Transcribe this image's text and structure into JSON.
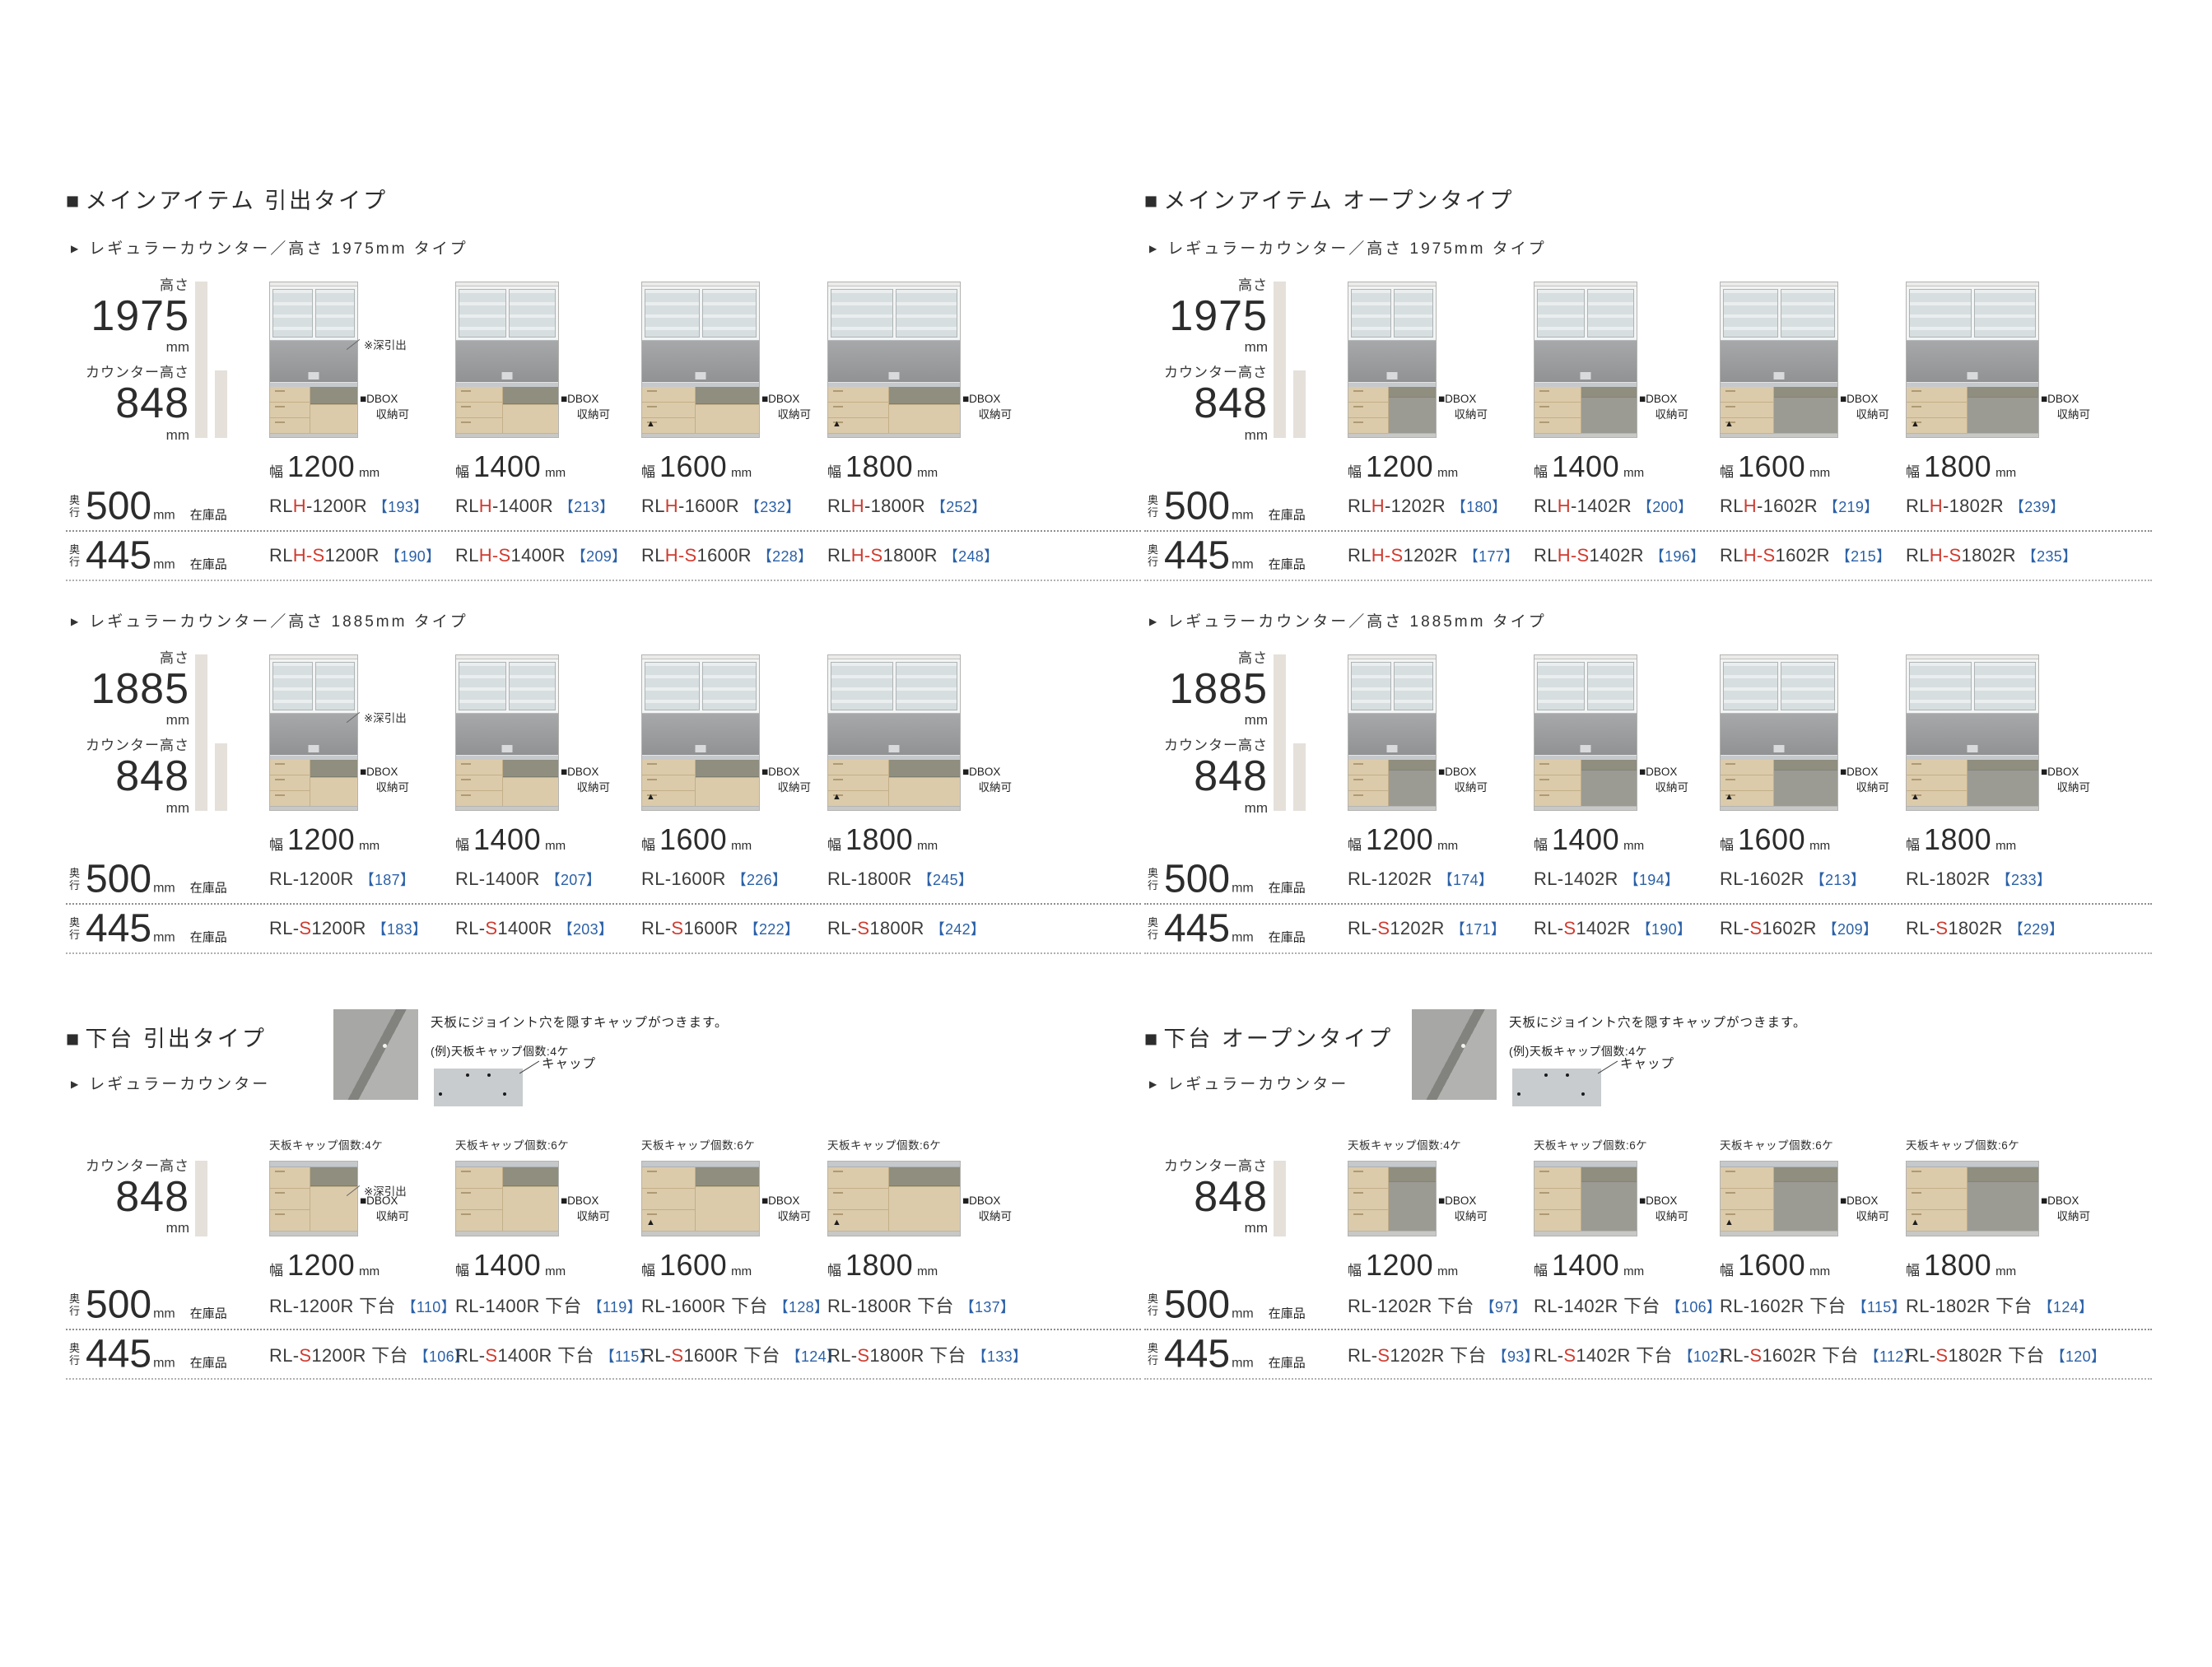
{
  "colors": {
    "red": "#cf3b2f",
    "blue": "#2b61a7",
    "bar": "#e5e0da"
  },
  "quadrants": [
    {
      "bullet": "■",
      "title": "メインアイテム 引出タイプ",
      "groups": [
        {
          "arrow": "▶",
          "subtitle": "レギュラーカウンター／高さ 1975mm タイプ",
          "height_label": "高さ",
          "height": "1975",
          "height_unit": "mm",
          "counter_label": "カウンター高さ",
          "counter": "848",
          "counter_unit": "mm",
          "products": [
            {
              "w": 108,
              "width_label": "幅",
              "width": "1200",
              "unit": "mm",
              "note": "※深引出",
              "dbox1": "■DBOX",
              "dbox2": "収納可",
              "mark": ""
            },
            {
              "w": 126,
              "width_label": "幅",
              "width": "1400",
              "unit": "mm",
              "note": "",
              "dbox1": "■DBOX",
              "dbox2": "収納可",
              "mark": ""
            },
            {
              "w": 144,
              "width_label": "幅",
              "width": "1600",
              "unit": "mm",
              "note": "",
              "dbox1": "■DBOX",
              "dbox2": "収納可",
              "mark": "▲"
            },
            {
              "w": 162,
              "width_label": "幅",
              "width": "1800",
              "unit": "mm",
              "note": "",
              "dbox1": "■DBOX",
              "dbox2": "収納可",
              "mark": "▲"
            }
          ],
          "rows": [
            {
              "depth_label": "奥行",
              "depth": "500",
              "unit": "mm",
              "stock": "在庫品",
              "models": [
                {
                  "b1": "RL",
                  "r": "H",
                  "b2": "-1200R",
                  "price": "【193】"
                },
                {
                  "b1": "RL",
                  "r": "H",
                  "b2": "-1400R",
                  "price": "【213】"
                },
                {
                  "b1": "RL",
                  "r": "H",
                  "b2": "-1600R",
                  "price": "【232】"
                },
                {
                  "b1": "RL",
                  "r": "H",
                  "b2": "-1800R",
                  "price": "【252】"
                }
              ]
            },
            {
              "depth_label": "奥行",
              "depth": "445",
              "unit": "mm",
              "stock": "在庫品",
              "models": [
                {
                  "b1": "RL",
                  "r": "H-S",
                  "b2": "1200R",
                  "price": "【190】"
                },
                {
                  "b1": "RL",
                  "r": "H-S",
                  "b2": "1400R",
                  "price": "【209】"
                },
                {
                  "b1": "RL",
                  "r": "H-S",
                  "b2": "1600R",
                  "price": "【228】"
                },
                {
                  "b1": "RL",
                  "r": "H-S",
                  "b2": "1800R",
                  "price": "【248】"
                }
              ]
            }
          ]
        },
        {
          "arrow": "▶",
          "subtitle": "レギュラーカウンター／高さ 1885mm タイプ",
          "height_label": "高さ",
          "height": "1885",
          "height_unit": "mm",
          "counter_label": "カウンター高さ",
          "counter": "848",
          "counter_unit": "mm",
          "products": [
            {
              "w": 108,
              "width_label": "幅",
              "width": "1200",
              "unit": "mm",
              "note": "※深引出",
              "dbox1": "■DBOX",
              "dbox2": "収納可",
              "mark": ""
            },
            {
              "w": 126,
              "width_label": "幅",
              "width": "1400",
              "unit": "mm",
              "note": "",
              "dbox1": "■DBOX",
              "dbox2": "収納可",
              "mark": ""
            },
            {
              "w": 144,
              "width_label": "幅",
              "width": "1600",
              "unit": "mm",
              "note": "",
              "dbox1": "■DBOX",
              "dbox2": "収納可",
              "mark": "▲"
            },
            {
              "w": 162,
              "width_label": "幅",
              "width": "1800",
              "unit": "mm",
              "note": "",
              "dbox1": "■DBOX",
              "dbox2": "収納可",
              "mark": "▲"
            }
          ],
          "rows": [
            {
              "depth_label": "奥行",
              "depth": "500",
              "unit": "mm",
              "stock": "在庫品",
              "models": [
                {
                  "b1": "RL-1200R",
                  "r": "",
                  "b2": "",
                  "price": "【187】"
                },
                {
                  "b1": "RL-1400R",
                  "r": "",
                  "b2": "",
                  "price": "【207】"
                },
                {
                  "b1": "RL-1600R",
                  "r": "",
                  "b2": "",
                  "price": "【226】"
                },
                {
                  "b1": "RL-1800R",
                  "r": "",
                  "b2": "",
                  "price": "【245】"
                }
              ]
            },
            {
              "depth_label": "奥行",
              "depth": "445",
              "unit": "mm",
              "stock": "在庫品",
              "models": [
                {
                  "b1": "RL-",
                  "r": "S",
                  "b2": "1200R",
                  "price": "【183】"
                },
                {
                  "b1": "RL-",
                  "r": "S",
                  "b2": "1400R",
                  "price": "【203】"
                },
                {
                  "b1": "RL-",
                  "r": "S",
                  "b2": "1600R",
                  "price": "【222】"
                },
                {
                  "b1": "RL-",
                  "r": "S",
                  "b2": "1800R",
                  "price": "【242】"
                }
              ]
            }
          ]
        }
      ]
    },
    {
      "bullet": "■",
      "title": "メインアイテム オープンタイプ",
      "groups": [
        {
          "arrow": "▶",
          "subtitle": "レギュラーカウンター／高さ 1975mm タイプ",
          "height_label": "高さ",
          "height": "1975",
          "height_unit": "mm",
          "counter_label": "カウンター高さ",
          "counter": "848",
          "counter_unit": "mm",
          "products": [
            {
              "w": 108,
              "width_label": "幅",
              "width": "1200",
              "unit": "mm",
              "note": "",
              "dbox1": "■DBOX",
              "dbox2": "収納可",
              "mark": ""
            },
            {
              "w": 126,
              "width_label": "幅",
              "width": "1400",
              "unit": "mm",
              "note": "",
              "dbox1": "■DBOX",
              "dbox2": "収納可",
              "mark": ""
            },
            {
              "w": 144,
              "width_label": "幅",
              "width": "1600",
              "unit": "mm",
              "note": "",
              "dbox1": "■DBOX",
              "dbox2": "収納可",
              "mark": "▲"
            },
            {
              "w": 162,
              "width_label": "幅",
              "width": "1800",
              "unit": "mm",
              "note": "",
              "dbox1": "■DBOX",
              "dbox2": "収納可",
              "mark": "▲"
            }
          ],
          "rows": [
            {
              "depth_label": "奥行",
              "depth": "500",
              "unit": "mm",
              "stock": "在庫品",
              "models": [
                {
                  "b1": "RL",
                  "r": "H",
                  "b2": "-1202R",
                  "price": "【180】"
                },
                {
                  "b1": "RL",
                  "r": "H",
                  "b2": "-1402R",
                  "price": "【200】"
                },
                {
                  "b1": "RL",
                  "r": "H",
                  "b2": "-1602R",
                  "price": "【219】"
                },
                {
                  "b1": "RL",
                  "r": "H",
                  "b2": "-1802R",
                  "price": "【239】"
                }
              ]
            },
            {
              "depth_label": "奥行",
              "depth": "445",
              "unit": "mm",
              "stock": "在庫品",
              "models": [
                {
                  "b1": "RL",
                  "r": "H-S",
                  "b2": "1202R",
                  "price": "【177】"
                },
                {
                  "b1": "RL",
                  "r": "H-S",
                  "b2": "1402R",
                  "price": "【196】"
                },
                {
                  "b1": "RL",
                  "r": "H-S",
                  "b2": "1602R",
                  "price": "【215】"
                },
                {
                  "b1": "RL",
                  "r": "H-S",
                  "b2": "1802R",
                  "price": "【235】"
                }
              ]
            }
          ]
        },
        {
          "arrow": "▶",
          "subtitle": "レギュラーカウンター／高さ 1885mm タイプ",
          "height_label": "高さ",
          "height": "1885",
          "height_unit": "mm",
          "counter_label": "カウンター高さ",
          "counter": "848",
          "counter_unit": "mm",
          "products": [
            {
              "w": 108,
              "width_label": "幅",
              "width": "1200",
              "unit": "mm",
              "note": "",
              "dbox1": "■DBOX",
              "dbox2": "収納可",
              "mark": ""
            },
            {
              "w": 126,
              "width_label": "幅",
              "width": "1400",
              "unit": "mm",
              "note": "",
              "dbox1": "■DBOX",
              "dbox2": "収納可",
              "mark": ""
            },
            {
              "w": 144,
              "width_label": "幅",
              "width": "1600",
              "unit": "mm",
              "note": "",
              "dbox1": "■DBOX",
              "dbox2": "収納可",
              "mark": "▲"
            },
            {
              "w": 162,
              "width_label": "幅",
              "width": "1800",
              "unit": "mm",
              "note": "",
              "dbox1": "■DBOX",
              "dbox2": "収納可",
              "mark": "▲"
            }
          ],
          "rows": [
            {
              "depth_label": "奥行",
              "depth": "500",
              "unit": "mm",
              "stock": "在庫品",
              "models": [
                {
                  "b1": "RL-1202R",
                  "r": "",
                  "b2": "",
                  "price": "【174】"
                },
                {
                  "b1": "RL-1402R",
                  "r": "",
                  "b2": "",
                  "price": "【194】"
                },
                {
                  "b1": "RL-1602R",
                  "r": "",
                  "b2": "",
                  "price": "【213】"
                },
                {
                  "b1": "RL-1802R",
                  "r": "",
                  "b2": "",
                  "price": "【233】"
                }
              ]
            },
            {
              "depth_label": "奥行",
              "depth": "445",
              "unit": "mm",
              "stock": "在庫品",
              "models": [
                {
                  "b1": "RL-",
                  "r": "S",
                  "b2": "1202R",
                  "price": "【171】"
                },
                {
                  "b1": "RL-",
                  "r": "S",
                  "b2": "1402R",
                  "price": "【190】"
                },
                {
                  "b1": "RL-",
                  "r": "S",
                  "b2": "1602R",
                  "price": "【209】"
                },
                {
                  "b1": "RL-",
                  "r": "S",
                  "b2": "1802R",
                  "price": "【229】"
                }
              ]
            }
          ]
        }
      ]
    },
    {
      "bullet": "■",
      "title": "下台 引出タイプ",
      "note1": "天板にジョイント穴を隠すキャップがつきます。",
      "note2": "(例)天板キャップ個数:4ケ",
      "cap_label": "キャップ",
      "arrow": "▶",
      "subtitle": "レギュラーカウンター",
      "group": {
        "counter_label": "カウンター高さ",
        "counter": "848",
        "counter_unit": "mm",
        "products": [
          {
            "w": 108,
            "cap": "天板キャップ個数:4ケ",
            "width_label": "幅",
            "width": "1200",
            "unit": "mm",
            "note": "※深引出",
            "dbox1": "■DBOX",
            "dbox2": "収納可",
            "mark": ""
          },
          {
            "w": 126,
            "cap": "天板キャップ個数:6ケ",
            "width_label": "幅",
            "width": "1400",
            "unit": "mm",
            "note": "",
            "dbox1": "■DBOX",
            "dbox2": "収納可",
            "mark": ""
          },
          {
            "w": 144,
            "cap": "天板キャップ個数:6ケ",
            "width_label": "幅",
            "width": "1600",
            "unit": "mm",
            "note": "",
            "dbox1": "■DBOX",
            "dbox2": "収納可",
            "mark": "▲"
          },
          {
            "w": 162,
            "cap": "天板キャップ個数:6ケ",
            "width_label": "幅",
            "width": "1800",
            "unit": "mm",
            "note": "",
            "dbox1": "■DBOX",
            "dbox2": "収納可",
            "mark": "▲"
          }
        ],
        "rows": [
          {
            "depth_label": "奥行",
            "depth": "500",
            "unit": "mm",
            "stock": "在庫品",
            "models": [
              {
                "b1": "RL-1200R 下台",
                "r": "",
                "b2": "",
                "price": "【110】"
              },
              {
                "b1": "RL-1400R 下台",
                "r": "",
                "b2": "",
                "price": "【119】"
              },
              {
                "b1": "RL-1600R 下台",
                "r": "",
                "b2": "",
                "price": "【128】"
              },
              {
                "b1": "RL-1800R 下台",
                "r": "",
                "b2": "",
                "price": "【137】"
              }
            ]
          },
          {
            "depth_label": "奥行",
            "depth": "445",
            "unit": "mm",
            "stock": "在庫品",
            "models": [
              {
                "b1": "RL-",
                "r": "S",
                "b2": "1200R 下台",
                "price": "【106】"
              },
              {
                "b1": "RL-",
                "r": "S",
                "b2": "1400R 下台",
                "price": "【115】"
              },
              {
                "b1": "RL-",
                "r": "S",
                "b2": "1600R 下台",
                "price": "【124】"
              },
              {
                "b1": "RL-",
                "r": "S",
                "b2": "1800R 下台",
                "price": "【133】"
              }
            ]
          }
        ]
      }
    },
    {
      "bullet": "■",
      "title": "下台 オープンタイプ",
      "note1": "天板にジョイント穴を隠すキャップがつきます。",
      "note2": "(例)天板キャップ個数:4ケ",
      "cap_label": "キャップ",
      "arrow": "▶",
      "subtitle": "レギュラーカウンター",
      "group": {
        "counter_label": "カウンター高さ",
        "counter": "848",
        "counter_unit": "mm",
        "products": [
          {
            "w": 108,
            "cap": "天板キャップ個数:4ケ",
            "width_label": "幅",
            "width": "1200",
            "unit": "mm",
            "note": "",
            "dbox1": "■DBOX",
            "dbox2": "収納可",
            "mark": ""
          },
          {
            "w": 126,
            "cap": "天板キャップ個数:6ケ",
            "width_label": "幅",
            "width": "1400",
            "unit": "mm",
            "note": "",
            "dbox1": "■DBOX",
            "dbox2": "収納可",
            "mark": ""
          },
          {
            "w": 144,
            "cap": "天板キャップ個数:6ケ",
            "width_label": "幅",
            "width": "1600",
            "unit": "mm",
            "note": "",
            "dbox1": "■DBOX",
            "dbox2": "収納可",
            "mark": "▲"
          },
          {
            "w": 162,
            "cap": "天板キャップ個数:6ケ",
            "width_label": "幅",
            "width": "1800",
            "unit": "mm",
            "note": "",
            "dbox1": "■DBOX",
            "dbox2": "収納可",
            "mark": "▲"
          }
        ],
        "rows": [
          {
            "depth_label": "奥行",
            "depth": "500",
            "unit": "mm",
            "stock": "在庫品",
            "models": [
              {
                "b1": "RL-1202R 下台",
                "r": "",
                "b2": "",
                "price": "【97】"
              },
              {
                "b1": "RL-1402R 下台",
                "r": "",
                "b2": "",
                "price": "【106】"
              },
              {
                "b1": "RL-1602R 下台",
                "r": "",
                "b2": "",
                "price": "【115】"
              },
              {
                "b1": "RL-1802R 下台",
                "r": "",
                "b2": "",
                "price": "【124】"
              }
            ]
          },
          {
            "depth_label": "奥行",
            "depth": "445",
            "unit": "mm",
            "stock": "在庫品",
            "models": [
              {
                "b1": "RL-",
                "r": "S",
                "b2": "1202R 下台",
                "price": "【93】"
              },
              {
                "b1": "RL-",
                "r": "S",
                "b2": "1402R 下台",
                "price": "【102】"
              },
              {
                "b1": "RL-",
                "r": "S",
                "b2": "1602R 下台",
                "price": "【112】"
              },
              {
                "b1": "RL-",
                "r": "S",
                "b2": "1802R 下台",
                "price": "【120】"
              }
            ]
          }
        ]
      }
    }
  ]
}
